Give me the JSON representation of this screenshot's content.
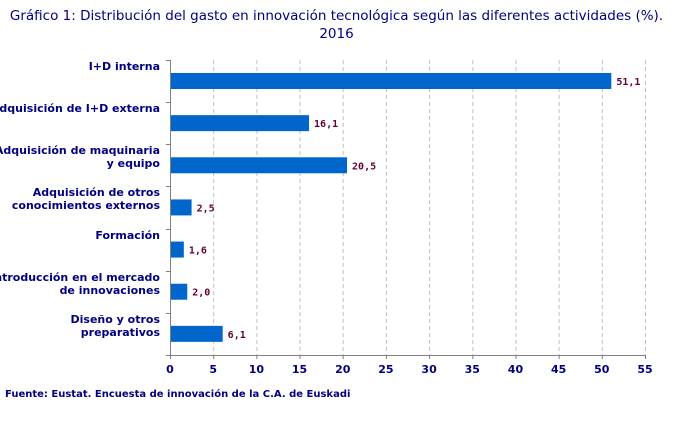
{
  "title": "Gráfico 1: Distribución del gasto en innovación tecnológica según las diferentes actividades (%). 2016",
  "source": "Fuente: Eustat. Encuesta de innovación de la C.A. de Euskadi",
  "colors": {
    "bar": "#0066CC",
    "value_label": "#660033",
    "text": "#000080",
    "grid": "#C0C0C0"
  },
  "chart_data": {
    "type": "bar",
    "orientation": "horizontal",
    "title": "Gráfico 1: Distribución del gasto en innovación tecnológica según las diferentes actividades (%). 2016",
    "categories": [
      "I+D interna",
      "Adquisición de I+D externa",
      "Adquisición de maquinaria y equipo",
      "Adquisición de otros conocimientos externos",
      "Formación",
      "Introducción en el mercado de innovaciones",
      "Diseño y otros preparativos"
    ],
    "values": [
      51.1,
      16.1,
      20.5,
      2.5,
      1.6,
      2.0,
      6.1
    ],
    "value_labels": [
      "51,1",
      "16,1",
      "20,5",
      "2,5",
      "1,6",
      "2,0",
      "6,1"
    ],
    "xlim": [
      0,
      55
    ],
    "xticks": [
      0,
      5,
      10,
      15,
      20,
      25,
      30,
      35,
      40,
      45,
      50,
      55
    ],
    "grid": "vertical dashed",
    "legend": "none"
  }
}
